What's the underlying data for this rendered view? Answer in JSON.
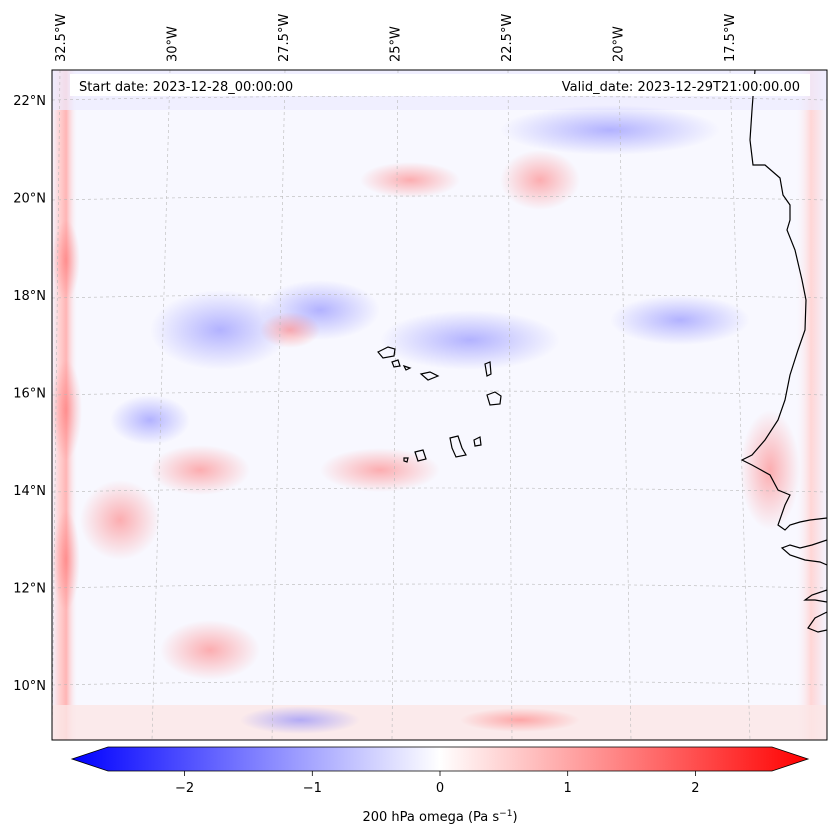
{
  "map": {
    "start_label": "Start date: 2023-12-28_00:00:00",
    "valid_label": "Valid_date: 2023-12-29T21:00:00.00",
    "lon_ticks": [
      {
        "value": -32.5,
        "label": "32.5°W"
      },
      {
        "value": -30.0,
        "label": "30°W"
      },
      {
        "value": -27.5,
        "label": "27.5°W"
      },
      {
        "value": -25.0,
        "label": "25°W"
      },
      {
        "value": -22.5,
        "label": "22.5°W"
      },
      {
        "value": -20.0,
        "label": "20°W"
      },
      {
        "value": -17.5,
        "label": "17.5°W"
      }
    ],
    "lat_ticks": [
      {
        "value": 22,
        "label": "22°N"
      },
      {
        "value": 20,
        "label": "20°N"
      },
      {
        "value": 18,
        "label": "18°N"
      },
      {
        "value": 16,
        "label": "16°N"
      },
      {
        "value": 14,
        "label": "14°N"
      },
      {
        "value": 12,
        "label": "12°N"
      },
      {
        "value": 10,
        "label": "10°N"
      }
    ],
    "grid": true
  },
  "colorbar": {
    "label_text": "200 hPa omega (Pa s",
    "label_sup": "−1",
    "label_close": ")",
    "range": [
      -2.6,
      2.6
    ],
    "ticks": [
      {
        "value": -2,
        "label": "−2"
      },
      {
        "value": -1,
        "label": "−1"
      },
      {
        "value": 0,
        "label": "0"
      },
      {
        "value": 1,
        "label": "1"
      },
      {
        "value": 2,
        "label": "2"
      }
    ],
    "colormap": "bwr",
    "color_low": "#0000ff",
    "color_mid": "#ffffff",
    "color_high": "#ff0000"
  }
}
